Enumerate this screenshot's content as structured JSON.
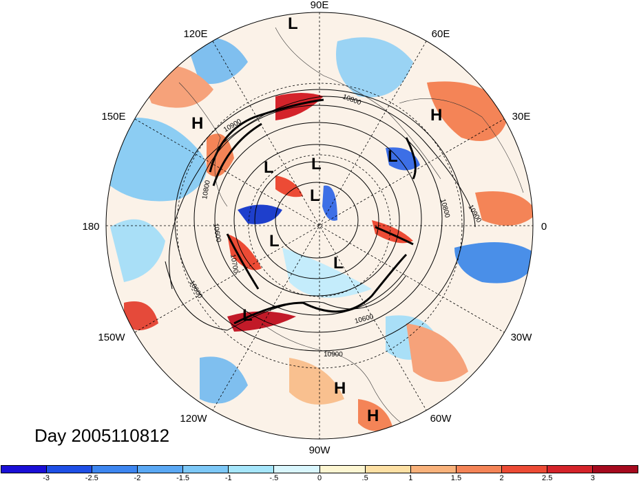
{
  "title": "Day 2005110812",
  "longitude_labels": {
    "lon_90E": "90E",
    "lon_60E": "60E",
    "lon_30E": "30E",
    "lon_0": "0",
    "lon_30W": "30W",
    "lon_60W": "60W",
    "lon_90W": "90W",
    "lon_120W": "120W",
    "lon_150W": "150W",
    "lon_180": "180",
    "lon_150E": "150E",
    "lon_120E": "120E"
  },
  "pressure_centers": [
    {
      "label": "L"
    },
    {
      "label": "L"
    },
    {
      "label": "L"
    },
    {
      "label": "L"
    },
    {
      "label": "L"
    },
    {
      "label": "L"
    },
    {
      "label": "L"
    },
    {
      "label": "L"
    },
    {
      "label": "H"
    },
    {
      "label": "H"
    },
    {
      "label": "H"
    },
    {
      "label": "H"
    }
  ],
  "contour_labels": [
    "10800",
    "10900",
    "10800",
    "10800",
    "10900",
    "10600",
    "10700",
    "10600",
    "10600",
    "10900",
    "10900",
    "10800"
  ],
  "colorbar": {
    "colors": [
      "#1a0fd6",
      "#1e4fe6",
      "#3d86f0",
      "#5aa8f4",
      "#7dc8f7",
      "#a6e6fb",
      "#d9f6fd",
      "#fdf6d2",
      "#fde0a4",
      "#f9b27b",
      "#f48457",
      "#ec4b35",
      "#d4232a",
      "#a50a1e"
    ],
    "ticks": [
      "-3",
      "-2.5",
      "-2",
      "-1.5",
      "-1",
      "-.5",
      "0",
      ".5",
      "1",
      "1.5",
      "2",
      "2.5",
      "3"
    ]
  }
}
